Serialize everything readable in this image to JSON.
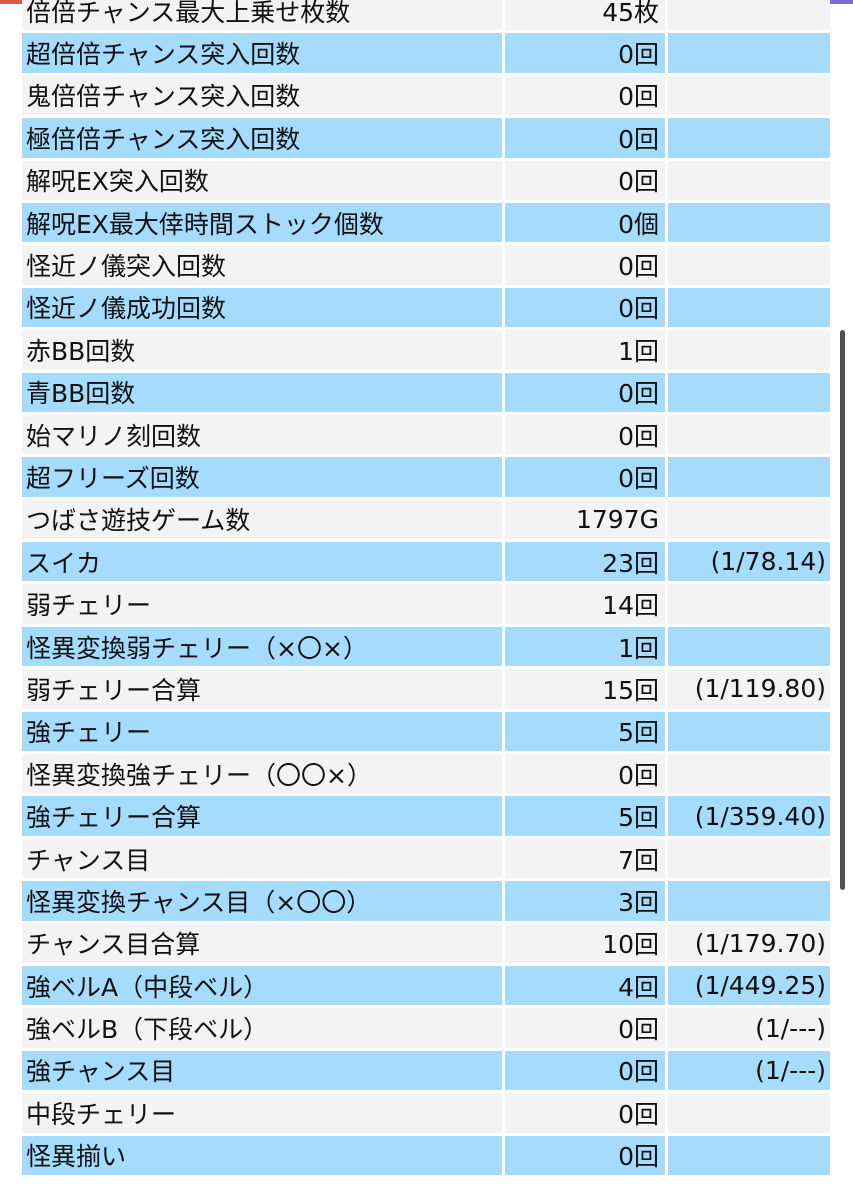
{
  "colors": {
    "row_odd": "#f3f3f3",
    "row_even": "#a5dbfc",
    "top_bar": [
      "#e0574a",
      "#ec9a3a",
      "#33a38a",
      "#d68b3b",
      "#7a6bd8"
    ]
  },
  "rows": [
    {
      "label": "倍倍チャンス最大上乗せ枚数",
      "value": "45枚",
      "rate": ""
    },
    {
      "label": "超倍倍チャンス突入回数",
      "value": "0回",
      "rate": ""
    },
    {
      "label": "鬼倍倍チャンス突入回数",
      "value": "0回",
      "rate": ""
    },
    {
      "label": "極倍倍チャンス突入回数",
      "value": "0回",
      "rate": ""
    },
    {
      "label": "解呪EX突入回数",
      "value": "0回",
      "rate": ""
    },
    {
      "label": "解呪EX最大倖時間ストック個数",
      "value": "0個",
      "rate": ""
    },
    {
      "label": "怪近ノ儀突入回数",
      "value": "0回",
      "rate": ""
    },
    {
      "label": "怪近ノ儀成功回数",
      "value": "0回",
      "rate": ""
    },
    {
      "label": "赤BB回数",
      "value": "1回",
      "rate": ""
    },
    {
      "label": "青BB回数",
      "value": "0回",
      "rate": ""
    },
    {
      "label": "始マリノ刻回数",
      "value": "0回",
      "rate": ""
    },
    {
      "label": "超フリーズ回数",
      "value": "0回",
      "rate": ""
    },
    {
      "label": "つばさ遊技ゲーム数",
      "value": "1797G",
      "rate": ""
    },
    {
      "label": "スイカ",
      "value": "23回",
      "rate": "(1/78.14)"
    },
    {
      "label": "弱チェリー",
      "value": "14回",
      "rate": ""
    },
    {
      "label": "怪異変換弱チェリー（×〇×）",
      "value": "1回",
      "rate": ""
    },
    {
      "label": "弱チェリー合算",
      "value": "15回",
      "rate": "(1/119.80)"
    },
    {
      "label": "強チェリー",
      "value": "5回",
      "rate": ""
    },
    {
      "label": "怪異変換強チェリー（〇〇×）",
      "value": "0回",
      "rate": ""
    },
    {
      "label": "強チェリー合算",
      "value": "5回",
      "rate": "(1/359.40)"
    },
    {
      "label": "チャンス目",
      "value": "7回",
      "rate": ""
    },
    {
      "label": "怪異変換チャンス目（×〇〇）",
      "value": "3回",
      "rate": ""
    },
    {
      "label": "チャンス目合算",
      "value": "10回",
      "rate": "(1/179.70)"
    },
    {
      "label": "強ベルA（中段ベル）",
      "value": "4回",
      "rate": "(1/449.25)"
    },
    {
      "label": "強ベルB（下段ベル）",
      "value": "0回",
      "rate": "(1/---)"
    },
    {
      "label": "強チャンス目",
      "value": "0回",
      "rate": "(1/---)"
    },
    {
      "label": "中段チェリー",
      "value": "0回",
      "rate": ""
    },
    {
      "label": "怪異揃い",
      "value": "0回",
      "rate": ""
    }
  ]
}
